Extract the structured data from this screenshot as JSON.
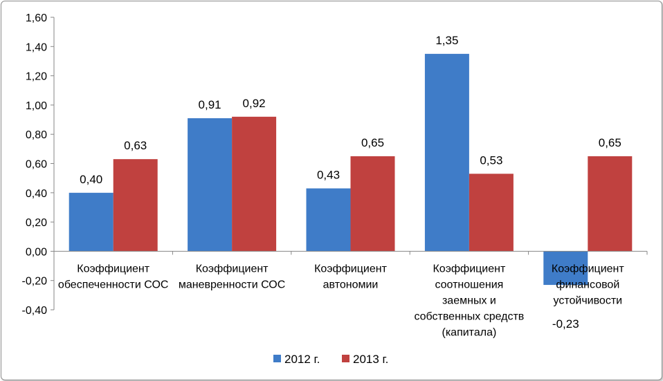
{
  "chart_data": {
    "type": "bar",
    "categories": [
      [
        "Коэффициент",
        "обеспеченности СОС"
      ],
      [
        "Коэффициент",
        "маневренности СОС"
      ],
      [
        "Коэффициент",
        "автономии"
      ],
      [
        "Коэффициент",
        "соотношения",
        "заемных и",
        "собственных средств",
        "(капитала)"
      ],
      [
        "Коэффициент",
        "финансовой",
        "устойчивости"
      ]
    ],
    "series": [
      {
        "name": "2012 г.",
        "color": "#3F7CC8",
        "values": [
          0.4,
          0.91,
          0.43,
          1.35,
          -0.23
        ],
        "labels": [
          "0,40",
          "0,91",
          "0,43",
          "1,35",
          "-0,23"
        ]
      },
      {
        "name": "2013 г.",
        "color": "#C0413F",
        "values": [
          0.63,
          0.92,
          0.65,
          0.53,
          0.65
        ],
        "labels": [
          "0,63",
          "0,92",
          "0,65",
          "0,53",
          "0,65"
        ]
      }
    ],
    "y_ticks": [
      1.6,
      1.4,
      1.2,
      1.0,
      0.8,
      0.6,
      0.4,
      0.2,
      0.0,
      -0.2,
      -0.4
    ],
    "y_tick_labels": [
      "1,60",
      "1,40",
      "1,20",
      "1,00",
      "0,80",
      "0,60",
      "0,40",
      "0,20",
      "0,00",
      "-0,20",
      "-0,40"
    ],
    "ylim": [
      -0.4,
      1.6
    ],
    "grid": false,
    "legend_position": "bottom",
    "title": "",
    "xlabel": "",
    "ylabel": ""
  }
}
